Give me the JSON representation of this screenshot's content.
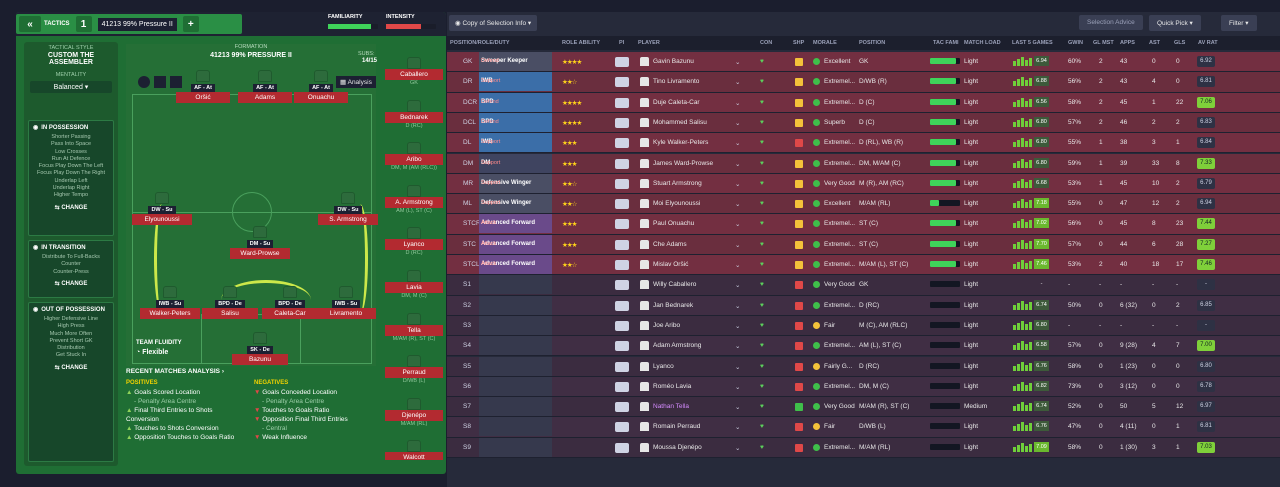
{
  "header": {
    "back_icon": "«",
    "tactics_label": "TACTICS",
    "slot": "1",
    "tactic_name": "41213 99% Pressure II",
    "add": "+",
    "familiarity": "FAMILIARITY",
    "intensity": "INTENSITY",
    "fam_value": "16"
  },
  "sidebar": {
    "style_title": "TACTICAL STYLE",
    "style_name": "CUSTOM THE ASSEMBLER",
    "mentality_title": "MENTALITY",
    "mentality": "Balanced",
    "in_possession_title": "IN POSSESSION",
    "in_possession": [
      "Shorter Passing",
      "Pass Into Space",
      "Low Crosses",
      "Run At Defence",
      "Focus Play Down The Left",
      "Focus Play Down The Right",
      "Underlap Left",
      "Underlap Right",
      "Higher Tempo"
    ],
    "in_transition_title": "IN TRANSITION",
    "in_transition": [
      "Distribute To Full-Backs",
      "Counter",
      "Counter-Press"
    ],
    "out_title": "OUT OF POSSESSION",
    "out_possession": [
      "Higher Defensive Line",
      "High Press",
      "Much More Often",
      "Prevent Short GK",
      "Distribution",
      "Get Stuck In"
    ],
    "change": "CHANGE"
  },
  "pitch": {
    "formation_label": "FORMATION",
    "formation": "41213 99% PRESSURE II",
    "subs_label": "SUBS:",
    "subs_count": "14/15",
    "analysis": "Analysis",
    "team_fluidity_label": "TEAM FLUIDITY",
    "fluidity": "Flexible",
    "players": [
      {
        "role": "AF - At",
        "name": "Oršić"
      },
      {
        "role": "AF - At",
        "name": "Adams"
      },
      {
        "role": "AF - At",
        "name": "Onuachu"
      },
      {
        "role": "DW - Su",
        "name": "Elyounoussi"
      },
      {
        "role": "DW - Su",
        "name": "S. Armstrong"
      },
      {
        "role": "DM - Su",
        "name": "Ward-Prowse"
      },
      {
        "role": "IWB - Su",
        "name": "Walker-Peters"
      },
      {
        "role": "BPD - De",
        "name": "Salisu"
      },
      {
        "role": "BPD - De",
        "name": "Caleta-Car"
      },
      {
        "role": "IWB - Su",
        "name": "Livramento"
      },
      {
        "role": "SK - De",
        "name": "Bazunu"
      }
    ],
    "subs": [
      {
        "name": "Caballero",
        "pos": "GK"
      },
      {
        "name": "Bednarek",
        "pos": "D (RC)"
      },
      {
        "name": "Aribo",
        "pos": "DM, M (AM (RLC))"
      },
      {
        "name": "A. Armstrong",
        "pos": "AM (L), ST (C)"
      },
      {
        "name": "Lyanco",
        "pos": "D (RC)"
      },
      {
        "name": "Lavia",
        "pos": "DM, M (C)"
      },
      {
        "name": "Tella",
        "pos": "M/AM (R), ST (C)"
      },
      {
        "name": "Perraud",
        "pos": "D/WB (L)"
      },
      {
        "name": "Djenépo",
        "pos": "M/AM (RL)"
      },
      {
        "name": "Walcott",
        "pos": ""
      }
    ]
  },
  "analysis": {
    "title": "RECENT MATCHES ANALYSIS",
    "positives_label": "POSITIVES",
    "negatives_label": "NEGATIVES",
    "positives": [
      "Goals Scored Location",
      "- Penalty Area Centre",
      "Final Third Entries to Shots Conversion",
      "Touches to Shots Conversion",
      "Opposition Touches to Goals Ratio"
    ],
    "negatives": [
      "Goals Conceded Location",
      "- Penalty Area Centre",
      "Touches to Goals Ratio",
      "Opposition Final Third Entries",
      "- Central",
      "Weak Influence"
    ]
  },
  "toolbar": {
    "view": "Copy of Selection Info",
    "selection_advice": "Selection Advice",
    "quick_pick": "Quick Pick",
    "filter": "Filter"
  },
  "columns": [
    "POSITION/ROLE/DUTY",
    "ROLE ABILITY",
    "PI",
    "PLAYER",
    "CON",
    "SHP",
    "MORALE",
    "POSITION",
    "TAC FAMI",
    "MATCH LOAD",
    "LAST 5 GAMES",
    "GWIN",
    "GL MST",
    "APPS",
    "AST",
    "GLS",
    "AV RAT"
  ],
  "rows": [
    {
      "pos": "GK",
      "role": "Sweeper Keeper",
      "duty": "Defend",
      "stars": "★★★★",
      "player": "Gavin Bazunu",
      "morale": "Excellent",
      "position": "GK",
      "load": "Light",
      "last5": "6.94",
      "gwin": "60%",
      "glmst": "2",
      "apps": "43",
      "ast": "0",
      "gls": "0",
      "avrat": "6.92",
      "mc": "#3fbf4a",
      "sc": "#f4c23a",
      "fam": 0.85
    },
    {
      "pos": "DR",
      "role": "IWB",
      "duty": "Support",
      "stars": "★★☆",
      "player": "Tino Livramento",
      "morale": "Extremel...",
      "position": "D/WB (R)",
      "load": "Light",
      "last5": "6.88",
      "gwin": "56%",
      "glmst": "2",
      "apps": "43",
      "ast": "4",
      "gls": "0",
      "avrat": "6.81",
      "mc": "#3fbf4a",
      "sc": "#f4c23a",
      "fam": 0.85
    },
    {
      "pos": "DCR",
      "role": "BPD",
      "duty": "Defend",
      "stars": "★★★★",
      "player": "Duje Caleta-Car",
      "morale": "Extremel...",
      "position": "D (C)",
      "load": "Light",
      "last5": "6.56",
      "gwin": "58%",
      "glmst": "2",
      "apps": "45",
      "ast": "1",
      "gls": "22",
      "avrat": "7.06",
      "mc": "#3fbf4a",
      "sc": "#f4c23a",
      "fam": 0.85
    },
    {
      "pos": "DCL",
      "role": "BPD",
      "duty": "Defend",
      "stars": "★★★★",
      "player": "Mohammed Salisu",
      "morale": "Superb",
      "position": "D (C)",
      "load": "Light",
      "last5": "6.80",
      "gwin": "57%",
      "glmst": "2",
      "apps": "46",
      "ast": "2",
      "gls": "2",
      "avrat": "6.83",
      "mc": "#3fbf4a",
      "sc": "#f4c23a",
      "fam": 0.85
    },
    {
      "pos": "DL",
      "role": "IWB",
      "duty": "Support",
      "stars": "★★★",
      "player": "Kyle Walker-Peters",
      "morale": "Extremel...",
      "position": "D (RL), WB (R)",
      "load": "Light",
      "last5": "6.80",
      "gwin": "55%",
      "glmst": "1",
      "apps": "38",
      "ast": "3",
      "gls": "1",
      "avrat": "6.84",
      "mc": "#3fbf4a",
      "sc": "#e04848",
      "fam": 0.85
    },
    {
      "pos": "DM",
      "role": "DM",
      "duty": "Support",
      "stars": "★★★",
      "player": "James Ward-Prowse",
      "morale": "Extremel...",
      "position": "DM, M/AM (C)",
      "load": "Light",
      "last5": "6.80",
      "gwin": "59%",
      "glmst": "1",
      "apps": "39",
      "ast": "33",
      "gls": "8",
      "avrat": "7.33",
      "mc": "#3fbf4a",
      "sc": "#f4c23a",
      "fam": 0.85
    },
    {
      "pos": "MR",
      "role": "Defensive Winger",
      "duty": "Support",
      "stars": "★★☆",
      "player": "Stuart Armstrong",
      "morale": "Very Good",
      "position": "M (R), AM (RC)",
      "load": "Light",
      "last5": "6.68",
      "gwin": "53%",
      "glmst": "1",
      "apps": "45",
      "ast": "10",
      "gls": "2",
      "avrat": "6.79",
      "mc": "#3fbf4a",
      "sc": "#f4c23a",
      "fam": 0.85
    },
    {
      "pos": "ML",
      "role": "Defensive Winger",
      "duty": "Support",
      "stars": "★★☆",
      "player": "Moi Elyounoussi",
      "morale": "Excellent",
      "position": "M/AM (RL)",
      "load": "Light",
      "last5": "7.18",
      "gwin": "55%",
      "glmst": "0",
      "apps": "47",
      "ast": "12",
      "gls": "2",
      "avrat": "6.94",
      "mc": "#3fbf4a",
      "sc": "#f4c23a",
      "fam": 0.3
    },
    {
      "pos": "STCR",
      "role": "Advanced Forward",
      "duty": "Attack",
      "stars": "★★★",
      "player": "Paul Onuachu",
      "morale": "Extremel...",
      "position": "ST (C)",
      "load": "Light",
      "last5": "7.02",
      "gwin": "56%",
      "glmst": "0",
      "apps": "45",
      "ast": "8",
      "gls": "23",
      "avrat": "7.44",
      "mc": "#3fbf4a",
      "sc": "#f4c23a",
      "fam": 0.85
    },
    {
      "pos": "STC",
      "role": "Advanced Forward",
      "duty": "Attack",
      "stars": "★★★",
      "player": "Che Adams",
      "morale": "Extremel...",
      "position": "ST (C)",
      "load": "Light",
      "last5": "7.70",
      "gwin": "57%",
      "glmst": "0",
      "apps": "44",
      "ast": "6",
      "gls": "28",
      "avrat": "7.27",
      "mc": "#3fbf4a",
      "sc": "#f4c23a",
      "fam": 0.85
    },
    {
      "pos": "STCL",
      "role": "Advanced Forward",
      "duty": "Attack",
      "stars": "★★☆",
      "player": "Mislav Oršić",
      "morale": "Extremel...",
      "position": "M/AM (L), ST (C)",
      "load": "Light",
      "last5": "7.46",
      "gwin": "53%",
      "glmst": "2",
      "apps": "40",
      "ast": "18",
      "gls": "17",
      "avrat": "7.46",
      "mc": "#3fbf4a",
      "sc": "#f4c23a",
      "fam": 0.85
    },
    {
      "pos": "S1",
      "role": "",
      "duty": "",
      "stars": "",
      "player": "Willy Caballero",
      "morale": "Very Good",
      "position": "GK",
      "load": "Light",
      "last5": "-",
      "gwin": "-",
      "glmst": "-",
      "apps": "-",
      "ast": "-",
      "gls": "-",
      "avrat": "-",
      "mc": "#3fbf4a",
      "sc": "#e04848",
      "fam": 0
    },
    {
      "pos": "S2",
      "role": "",
      "duty": "",
      "stars": "",
      "player": "Jan Bednarek",
      "morale": "Extremel...",
      "position": "D (RC)",
      "load": "Light",
      "last5": "6.74",
      "gwin": "50%",
      "glmst": "0",
      "apps": "6 (32)",
      "ast": "0",
      "gls": "2",
      "avrat": "6.85",
      "mc": "#3fbf4a",
      "sc": "#e04848",
      "fam": 0
    },
    {
      "pos": "S3",
      "role": "",
      "duty": "",
      "stars": "",
      "player": "Joe Aribo",
      "morale": "Fair",
      "position": "M (C), AM (RLC)",
      "load": "Light",
      "last5": "6.80",
      "gwin": "-",
      "glmst": "-",
      "apps": "-",
      "ast": "-",
      "gls": "-",
      "avrat": "-",
      "mc": "#f4c23a",
      "sc": "#e04848",
      "fam": 0
    },
    {
      "pos": "S4",
      "role": "",
      "duty": "",
      "stars": "",
      "player": "Adam Armstrong",
      "morale": "Extremel...",
      "position": "AM (L), ST (C)",
      "load": "Light",
      "last5": "6.58",
      "gwin": "57%",
      "glmst": "0",
      "apps": "9 (28)",
      "ast": "4",
      "gls": "7",
      "avrat": "7.00",
      "mc": "#3fbf4a",
      "sc": "#e04848",
      "fam": 0
    },
    {
      "pos": "S5",
      "role": "",
      "duty": "",
      "stars": "",
      "player": "Lyanco",
      "morale": "Fairly G...",
      "position": "D (RC)",
      "load": "Light",
      "last5": "6.76",
      "gwin": "58%",
      "glmst": "0",
      "apps": "1 (23)",
      "ast": "0",
      "gls": "0",
      "avrat": "6.80",
      "mc": "#f4c23a",
      "sc": "#e04848",
      "fam": 0
    },
    {
      "pos": "S6",
      "role": "",
      "duty": "",
      "stars": "",
      "player": "Roméo Lavia",
      "morale": "Extremel...",
      "position": "DM, M (C)",
      "load": "Light",
      "last5": "6.82",
      "gwin": "73%",
      "glmst": "0",
      "apps": "3 (12)",
      "ast": "0",
      "gls": "0",
      "avrat": "6.78",
      "mc": "#3fbf4a",
      "sc": "#e04848",
      "fam": 0
    },
    {
      "pos": "S7",
      "role": "",
      "duty": "",
      "stars": "",
      "player": "Nathan Tella",
      "morale": "Very Good",
      "position": "M/AM (R), ST (C)",
      "load": "Medium",
      "last5": "6.74",
      "gwin": "52%",
      "glmst": "0",
      "apps": "50",
      "ast": "5",
      "gls": "12",
      "avrat": "6.97",
      "mc": "#3fbf4a",
      "sc": "#3fbf4a",
      "fam": 0
    },
    {
      "pos": "S8",
      "role": "",
      "duty": "",
      "stars": "",
      "player": "Romain Perraud",
      "morale": "Fair",
      "position": "D/WB (L)",
      "load": "Light",
      "last5": "6.76",
      "gwin": "47%",
      "glmst": "0",
      "apps": "4 (11)",
      "ast": "0",
      "gls": "1",
      "avrat": "6.81",
      "mc": "#f4c23a",
      "sc": "#e04848",
      "fam": 0
    },
    {
      "pos": "S9",
      "role": "",
      "duty": "",
      "stars": "",
      "player": "Moussa Djenépo",
      "morale": "Extremel...",
      "position": "M/AM (RL)",
      "load": "Light",
      "last5": "7.09",
      "gwin": "58%",
      "glmst": "0",
      "apps": "1 (30)",
      "ast": "3",
      "gls": "1",
      "avrat": "7.03",
      "mc": "#3fbf4a",
      "sc": "#e04848",
      "fam": 0
    }
  ]
}
